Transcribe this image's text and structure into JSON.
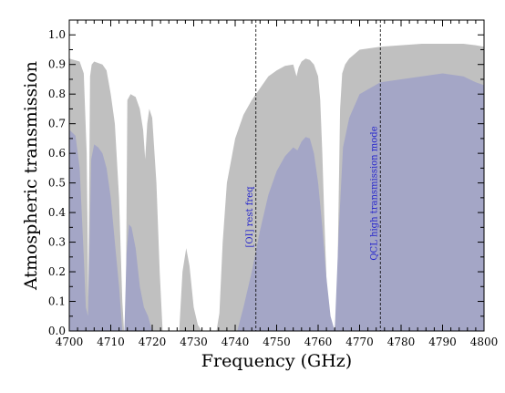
{
  "chart_data": {
    "type": "area",
    "xlabel": "Frequency (GHz)",
    "ylabel": "Atmospheric transmission",
    "xlim": [
      4700,
      4800
    ],
    "ylim": [
      0.0,
      1.05
    ],
    "x_ticks": [
      "4700",
      "4710",
      "4720",
      "4730",
      "4740",
      "4750",
      "4760",
      "4770",
      "4780",
      "4790",
      "4800"
    ],
    "y_ticks": [
      "0.0",
      "0.1",
      "0.2",
      "0.3",
      "0.4",
      "0.5",
      "0.6",
      "0.7",
      "0.8",
      "0.9",
      "1.0"
    ],
    "grid": false,
    "colors": {
      "upper": "#c0c0c0",
      "lower": "#a4a6c6",
      "annotation": "#2222cc"
    },
    "series": [
      {
        "x": [
          4700,
          4702.5,
          4703.5,
          4704.2,
          4704.6,
          4705.0,
          4705.4,
          4706,
          4707,
          4708,
          4709,
          4710,
          4711,
          4712,
          4712.8,
          4713.2,
          4713.6,
          4714.0,
          4714.8,
          4716,
          4717,
          4717.8,
          4718.3,
          4718.8,
          4719.3,
          4720,
          4721,
          4721.8,
          4722.5,
          4726.5,
          4727.3,
          4728.2,
          4729.0,
          4730.0,
          4731.0,
          4732.0,
          4734.0,
          4735.5,
          4736.2,
          4737.0,
          4738.0,
          4740,
          4742,
          4744,
          4746,
          4748,
          4750,
          4752,
          4754,
          4754.8,
          4755.3,
          4756,
          4757,
          4758,
          4759,
          4760,
          4760.5,
          4761.0,
          4761.5,
          4762.0,
          4762.5,
          4763.0,
          4763.8,
          4764.5,
          4764.9,
          4765.3,
          4765.8,
          4766.5,
          4767.5,
          4770,
          4775,
          4780,
          4785,
          4790,
          4795,
          4798,
          4800
        ],
        "values": [
          0.92,
          0.91,
          0.87,
          0.6,
          0.12,
          0.86,
          0.9,
          0.91,
          0.905,
          0.9,
          0.88,
          0.8,
          0.7,
          0.45,
          0.1,
          0.0,
          0.0,
          0.78,
          0.8,
          0.79,
          0.75,
          0.68,
          0.58,
          0.7,
          0.75,
          0.72,
          0.5,
          0.2,
          0.0,
          0.0,
          0.2,
          0.28,
          0.22,
          0.08,
          0.02,
          0.0,
          0.0,
          0.0,
          0.06,
          0.3,
          0.5,
          0.65,
          0.73,
          0.78,
          0.82,
          0.86,
          0.88,
          0.895,
          0.9,
          0.86,
          0.89,
          0.91,
          0.92,
          0.915,
          0.9,
          0.86,
          0.78,
          0.6,
          0.38,
          0.18,
          0.05,
          0.0,
          0.0,
          0.05,
          0.4,
          0.75,
          0.87,
          0.9,
          0.92,
          0.95,
          0.96,
          0.965,
          0.97,
          0.97,
          0.97,
          0.965,
          0.96
        ]
      },
      {
        "x": [
          4700,
          4701.5,
          4702.5,
          4703.5,
          4704.0,
          4704.5,
          4704.9,
          4705.3,
          4706,
          4707,
          4708,
          4709,
          4710,
          4711,
          4712,
          4712.8,
          4713.3,
          4713.8,
          4714.4,
          4715,
          4716,
          4717,
          4718,
          4719,
          4720,
          4721,
          4722,
          4740.5,
          4742,
          4744,
          4746,
          4748,
          4750,
          4752,
          4754,
          4755,
          4756,
          4757,
          4758,
          4759,
          4760,
          4761,
          4762,
          4763,
          4764,
          4765,
          4766,
          4767.5,
          4770,
          4775,
          4780,
          4785,
          4790,
          4795,
          4798,
          4800
        ],
        "values": [
          0.68,
          0.66,
          0.55,
          0.25,
          0.08,
          0.05,
          0.3,
          0.58,
          0.63,
          0.62,
          0.6,
          0.55,
          0.45,
          0.3,
          0.15,
          0.0,
          0.0,
          0.26,
          0.36,
          0.35,
          0.28,
          0.15,
          0.08,
          0.05,
          0.0,
          0.0,
          0.0,
          0.0,
          0.08,
          0.2,
          0.34,
          0.46,
          0.54,
          0.59,
          0.62,
          0.61,
          0.64,
          0.655,
          0.65,
          0.6,
          0.5,
          0.35,
          0.18,
          0.05,
          0.0,
          0.35,
          0.62,
          0.72,
          0.8,
          0.84,
          0.85,
          0.86,
          0.87,
          0.86,
          0.84,
          0.83
        ]
      }
    ],
    "annotations": [
      {
        "x": 4745,
        "text": "[OI] rest freq"
      },
      {
        "x": 4775,
        "text": "QCL high transmission mode"
      }
    ]
  }
}
